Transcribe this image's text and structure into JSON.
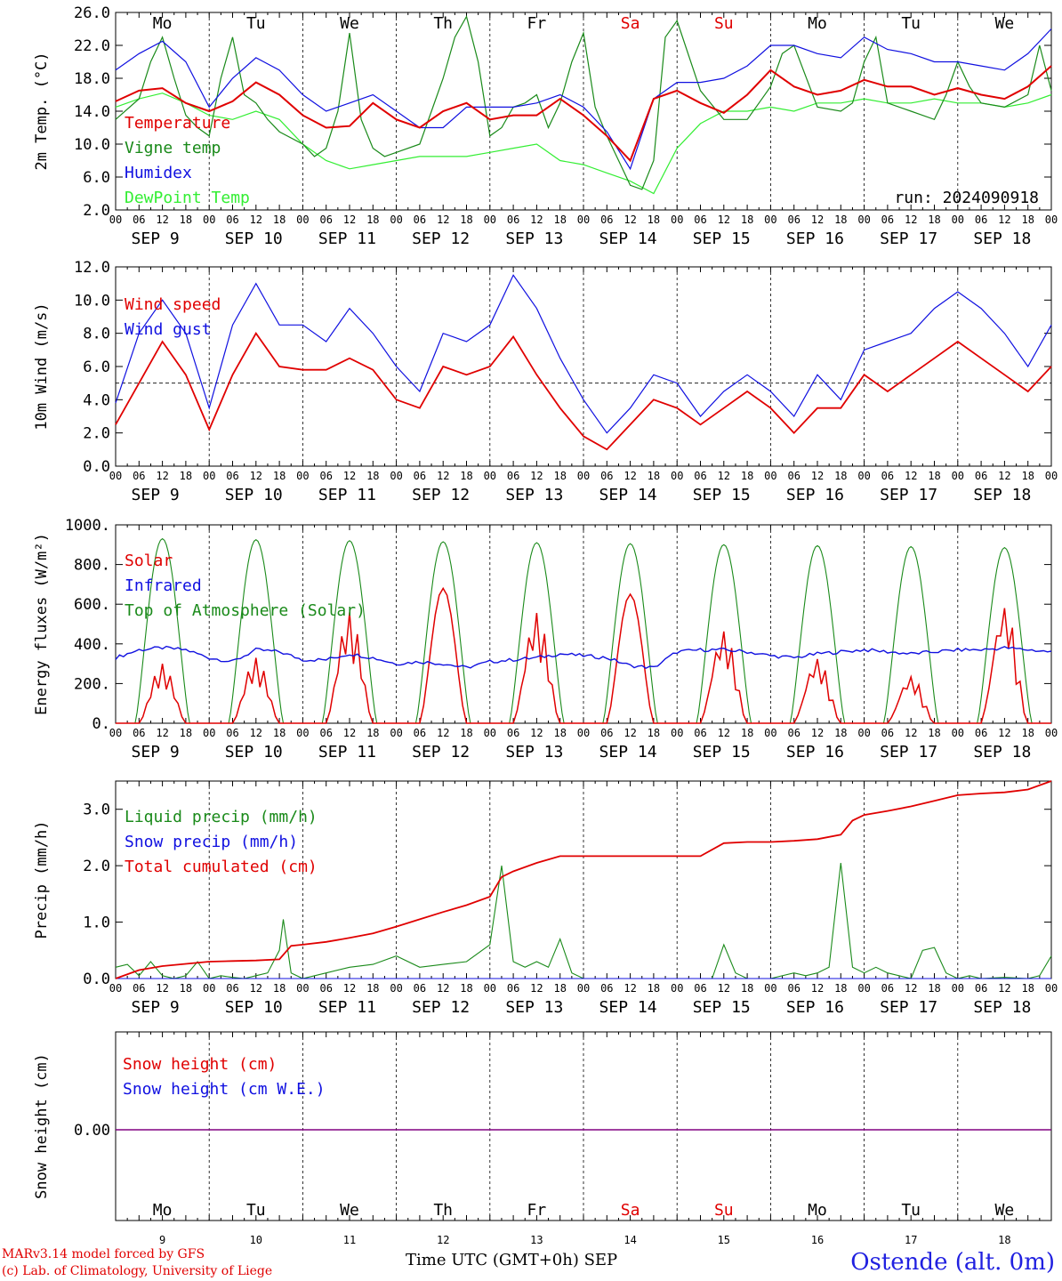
{
  "footer": {
    "model_line": "MARv3.14 model forced by GFS",
    "credit_line": "(c) Lab. of Climatology, University of Liege",
    "station": "Ostende (alt. 0m)",
    "time_axis_label": "Time UTC (GMT+0h) SEP"
  },
  "days": {
    "dates": [
      "SEP  9",
      "SEP 10",
      "SEP 11",
      "SEP 12",
      "SEP 13",
      "SEP 14",
      "SEP 15",
      "SEP 16",
      "SEP 17",
      "SEP 18"
    ],
    "weekdays": [
      "Mo",
      "Tu",
      "We",
      "Th",
      "Fr",
      "Sa",
      "Su",
      "Mo",
      "Tu",
      "We"
    ],
    "day_numbers": [
      "9",
      "10",
      "11",
      "12",
      "13",
      "14",
      "15",
      "16",
      "17",
      "18"
    ],
    "weekend_color": "#e00000",
    "hour_ticks": [
      "00",
      "06",
      "12",
      "18"
    ]
  },
  "colors": {
    "red": "#e00000",
    "green": "#1a8a1a",
    "blue": "#1010e0",
    "lightgreen": "#33ee33",
    "purple": "#800080"
  },
  "chart_data": [
    {
      "type": "line",
      "ylabel": "2m Temp. (°C)",
      "ylim": [
        2.0,
        26.0
      ],
      "yticks": [
        "2.0",
        "6.0",
        "10.0",
        "14.0",
        "18.0",
        "22.0",
        "26.0"
      ],
      "xunit": "hours since Sep 9 00 UTC",
      "annotation": "run: 2024090918",
      "series": [
        {
          "name": "Temperature",
          "color": "red",
          "x": [
            0,
            6,
            12,
            18,
            24,
            30,
            36,
            42,
            48,
            54,
            60,
            66,
            72,
            78,
            84,
            90,
            96,
            102,
            108,
            114,
            120,
            126,
            132,
            138,
            144,
            150,
            156,
            162,
            168,
            174,
            180,
            186,
            192,
            198,
            204,
            210,
            216,
            222,
            228,
            234,
            240
          ],
          "y": [
            15.2,
            16.5,
            16.8,
            15.0,
            14.0,
            15.2,
            17.5,
            16.0,
            13.5,
            12.0,
            12.2,
            15.0,
            13.0,
            12.0,
            14.0,
            15.0,
            13.0,
            13.5,
            13.5,
            15.5,
            13.5,
            11.0,
            8.0,
            15.5,
            16.5,
            15.0,
            13.8,
            16.0,
            19.0,
            17.0,
            16.0,
            16.5,
            17.8,
            17.0,
            17.0,
            16.0,
            16.8,
            16.0,
            15.5,
            17.0,
            19.5
          ]
        },
        {
          "name": "Vigne temp",
          "color": "green",
          "x": [
            0,
            6,
            9,
            12,
            15,
            18,
            21,
            24,
            27,
            30,
            33,
            36,
            39,
            42,
            48,
            51,
            54,
            57,
            60,
            63,
            66,
            69,
            72,
            78,
            81,
            84,
            87,
            90,
            93,
            96,
            99,
            102,
            105,
            108,
            111,
            114,
            117,
            120,
            123,
            126,
            129,
            132,
            135,
            138,
            141,
            144,
            150,
            156,
            162,
            165,
            168,
            171,
            174,
            180,
            186,
            189,
            192,
            195,
            198,
            204,
            210,
            213,
            216,
            219,
            222,
            228,
            234,
            237,
            240
          ],
          "y": [
            13.0,
            15.5,
            20.0,
            23.0,
            18.0,
            13.5,
            12.0,
            11.0,
            18.0,
            23.0,
            16.0,
            15.0,
            13.0,
            11.5,
            10.0,
            8.5,
            9.5,
            14.0,
            23.5,
            13.0,
            9.5,
            8.5,
            9.0,
            10.0,
            14.0,
            18.0,
            23.0,
            25.5,
            20.0,
            11.0,
            12.0,
            14.5,
            15.0,
            16.0,
            12.0,
            15.0,
            20.0,
            23.5,
            14.5,
            11.0,
            8.0,
            5.0,
            4.5,
            8.0,
            23.0,
            25.0,
            16.5,
            13.0,
            13.0,
            15.0,
            17.0,
            21.0,
            22.0,
            14.5,
            14.0,
            15.0,
            20.0,
            23.0,
            15.0,
            14.0,
            13.0,
            16.0,
            20.0,
            17.0,
            15.0,
            14.5,
            16.0,
            22.0,
            16.5
          ]
        },
        {
          "name": "Humidex",
          "color": "blue",
          "x": [
            0,
            6,
            12,
            18,
            24,
            30,
            36,
            42,
            48,
            54,
            60,
            66,
            72,
            78,
            84,
            90,
            96,
            102,
            108,
            114,
            120,
            126,
            132,
            138,
            144,
            150,
            156,
            162,
            168,
            174,
            180,
            186,
            192,
            198,
            204,
            210,
            216,
            222,
            228,
            234,
            240
          ],
          "y": [
            19.0,
            21.0,
            22.5,
            20.0,
            14.5,
            18.0,
            20.5,
            19.0,
            16.0,
            14.0,
            15.0,
            16.0,
            14.0,
            12.0,
            12.0,
            14.5,
            14.5,
            14.5,
            15.0,
            16.0,
            14.5,
            11.5,
            7.0,
            15.5,
            17.5,
            17.5,
            18.0,
            19.5,
            22.0,
            22.0,
            21.0,
            20.5,
            23.0,
            21.5,
            21.0,
            20.0,
            20.0,
            19.5,
            19.0,
            21.0,
            24.0
          ]
        },
        {
          "name": "DewPoint Temp",
          "color": "lightgreen",
          "x": [
            0,
            6,
            12,
            18,
            24,
            30,
            36,
            42,
            48,
            54,
            60,
            66,
            72,
            78,
            84,
            90,
            96,
            102,
            108,
            114,
            120,
            126,
            132,
            138,
            144,
            150,
            156,
            162,
            168,
            174,
            180,
            186,
            192,
            198,
            204,
            210,
            216,
            222,
            228,
            234,
            240
          ],
          "y": [
            14.5,
            15.5,
            16.2,
            15.0,
            13.5,
            13.0,
            14.0,
            13.0,
            10.0,
            8.0,
            7.0,
            7.5,
            8.0,
            8.5,
            8.5,
            8.5,
            9.0,
            9.5,
            10.0,
            8.0,
            7.5,
            6.5,
            5.5,
            4.0,
            9.5,
            12.5,
            14.0,
            14.0,
            14.5,
            14.0,
            15.0,
            15.0,
            15.5,
            15.0,
            15.0,
            15.5,
            15.0,
            15.0,
            14.5,
            15.0,
            16.0
          ]
        }
      ]
    },
    {
      "type": "line",
      "ylabel": "10m Wind (m/s)",
      "ylim": [
        0.0,
        12.0
      ],
      "yticks": [
        "0.0",
        "2.0",
        "4.0",
        "6.0",
        "8.0",
        "10.0",
        "12.0"
      ],
      "reference_line": 5.0,
      "series": [
        {
          "name": "Wind speed",
          "color": "red",
          "x": [
            0,
            6,
            12,
            18,
            24,
            30,
            36,
            42,
            48,
            54,
            60,
            66,
            72,
            78,
            84,
            90,
            96,
            102,
            108,
            114,
            120,
            126,
            132,
            138,
            144,
            150,
            156,
            162,
            168,
            174,
            180,
            186,
            192,
            198,
            204,
            210,
            216,
            222,
            228,
            234,
            240
          ],
          "y": [
            2.5,
            5.0,
            7.5,
            5.5,
            2.2,
            5.5,
            8.0,
            6.0,
            5.8,
            5.8,
            6.5,
            5.8,
            4.0,
            3.5,
            6.0,
            5.5,
            6.0,
            7.8,
            5.5,
            3.5,
            1.8,
            1.0,
            2.5,
            4.0,
            3.5,
            2.5,
            3.5,
            4.5,
            3.5,
            2.0,
            3.5,
            3.5,
            5.5,
            4.5,
            5.5,
            6.5,
            7.5,
            6.5,
            5.5,
            4.5,
            6.0
          ]
        },
        {
          "name": "Wind gust",
          "color": "blue",
          "x": [
            0,
            6,
            12,
            18,
            24,
            30,
            36,
            42,
            48,
            54,
            60,
            66,
            72,
            78,
            84,
            90,
            96,
            102,
            108,
            114,
            120,
            126,
            132,
            138,
            144,
            150,
            156,
            162,
            168,
            174,
            180,
            186,
            192,
            198,
            204,
            210,
            216,
            222,
            228,
            234,
            240
          ],
          "y": [
            3.8,
            8.0,
            10.0,
            8.0,
            3.5,
            8.5,
            11.0,
            8.5,
            8.5,
            7.5,
            9.5,
            8.0,
            6.0,
            4.5,
            8.0,
            7.5,
            8.5,
            11.5,
            9.5,
            6.5,
            4.0,
            2.0,
            3.5,
            5.5,
            5.0,
            3.0,
            4.5,
            5.5,
            4.5,
            3.0,
            5.5,
            4.0,
            7.0,
            7.5,
            8.0,
            9.5,
            10.5,
            9.5,
            8.0,
            6.0,
            8.5
          ]
        }
      ]
    },
    {
      "type": "line",
      "ylabel": "Energy fluxes (W/m²)",
      "ylim": [
        0,
        1000
      ],
      "yticks": [
        "0.",
        "200.",
        "400.",
        "600.",
        "800.",
        "1000."
      ],
      "series": [
        {
          "name": "Solar",
          "color": "red",
          "daily_peaks": [
            300,
            330,
            560,
            680,
            560,
            650,
            470,
            330,
            240,
            600
          ]
        },
        {
          "name": "Infrared",
          "color": "blue",
          "x": [
            0,
            6,
            12,
            18,
            24,
            30,
            36,
            42,
            48,
            54,
            60,
            66,
            72,
            78,
            84,
            90,
            96,
            102,
            108,
            114,
            120,
            126,
            132,
            138,
            144,
            150,
            156,
            162,
            168,
            174,
            180,
            186,
            192,
            198,
            204,
            210,
            216,
            222,
            228,
            234,
            240
          ],
          "y": [
            330,
            370,
            380,
            370,
            330,
            310,
            370,
            360,
            320,
            320,
            350,
            330,
            300,
            310,
            300,
            280,
            310,
            320,
            330,
            350,
            340,
            330,
            290,
            280,
            360,
            370,
            370,
            360,
            340,
            330,
            350,
            360,
            370,
            360,
            350,
            360,
            370,
            370,
            380,
            370,
            360
          ]
        },
        {
          "name": "Top of Atmosphere (Solar)",
          "color": "green",
          "daily_peaks": [
            930,
            925,
            920,
            915,
            910,
            905,
            900,
            895,
            890,
            885
          ]
        }
      ]
    },
    {
      "type": "line",
      "ylabel": "Precip (mm/h)",
      "ylim": [
        0.0,
        3.5
      ],
      "yticks": [
        "0.0",
        "1.0",
        "2.0",
        "3.0"
      ],
      "series": [
        {
          "name": "Liquid precip (mm/h)",
          "color": "green",
          "x": [
            0,
            3,
            6,
            9,
            12,
            15,
            18,
            21,
            24,
            27,
            30,
            33,
            36,
            39,
            42,
            43,
            45,
            48,
            54,
            60,
            66,
            72,
            78,
            84,
            90,
            96,
            99,
            102,
            105,
            108,
            111,
            114,
            117,
            120,
            126,
            132,
            138,
            144,
            150,
            153,
            156,
            159,
            162,
            168,
            174,
            177,
            180,
            183,
            186,
            189,
            192,
            195,
            198,
            204,
            207,
            210,
            213,
            216,
            219,
            222,
            228,
            234,
            237,
            240
          ],
          "y": [
            0.2,
            0.25,
            0.05,
            0.3,
            0.05,
            0.0,
            0.05,
            0.3,
            0.0,
            0.05,
            0.02,
            0.0,
            0.05,
            0.1,
            0.5,
            1.05,
            0.1,
            0.0,
            0.1,
            0.2,
            0.25,
            0.4,
            0.2,
            0.25,
            0.3,
            0.6,
            2.0,
            0.3,
            0.2,
            0.3,
            0.2,
            0.7,
            0.1,
            0.0,
            0.0,
            0.0,
            0.0,
            0.0,
            0.0,
            0.0,
            0.6,
            0.1,
            0.0,
            0.0,
            0.1,
            0.05,
            0.1,
            0.2,
            2.05,
            0.2,
            0.1,
            0.2,
            0.1,
            0.0,
            0.5,
            0.55,
            0.1,
            0.0,
            0.05,
            0.0,
            0.02,
            0.0,
            0.05,
            0.4
          ]
        },
        {
          "name": "Snow precip (mm/h)",
          "color": "blue",
          "x": [
            0,
            240
          ],
          "y": [
            0.0,
            0.0
          ]
        },
        {
          "name": "Total cumulated (cm)",
          "color": "red",
          "x": [
            0,
            6,
            12,
            18,
            24,
            30,
            36,
            42,
            45,
            48,
            54,
            60,
            66,
            72,
            78,
            84,
            90,
            96,
            99,
            102,
            108,
            114,
            120,
            126,
            132,
            138,
            144,
            150,
            156,
            162,
            168,
            174,
            180,
            186,
            189,
            192,
            198,
            204,
            210,
            216,
            222,
            228,
            234,
            240
          ],
          "y": [
            0.0,
            0.15,
            0.22,
            0.26,
            0.3,
            0.31,
            0.32,
            0.34,
            0.58,
            0.6,
            0.65,
            0.72,
            0.8,
            0.92,
            1.05,
            1.18,
            1.3,
            1.45,
            1.8,
            1.9,
            2.05,
            2.17,
            2.17,
            2.17,
            2.17,
            2.17,
            2.17,
            2.17,
            2.4,
            2.42,
            2.42,
            2.44,
            2.47,
            2.55,
            2.8,
            2.9,
            2.97,
            3.05,
            3.15,
            3.25,
            3.28,
            3.3,
            3.35,
            3.5
          ]
        }
      ]
    },
    {
      "type": "line",
      "ylabel": "Snow height (cm)",
      "yticks": [
        "0.00"
      ],
      "series": [
        {
          "name": "Snow height (cm)",
          "color": "red",
          "x": [
            0,
            240
          ],
          "y": [
            0.0,
            0.0
          ]
        },
        {
          "name": "Snow height (cm W.E.)",
          "color": "blue",
          "x": [
            0,
            240
          ],
          "y": [
            0.0,
            0.0
          ]
        }
      ]
    }
  ]
}
